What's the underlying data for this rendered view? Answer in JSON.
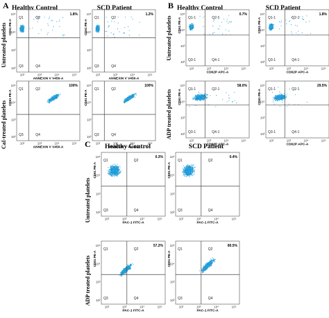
{
  "chart_data": [
    {
      "panel": "A",
      "type": "scatter",
      "column_titles": [
        "Healthy Control",
        "SCD Patient"
      ],
      "row_labels": [
        "Untreated platelets",
        "CaI-treated platelets"
      ],
      "xlabel": "ANNEXIN V V450-A",
      "ylabel": "CD61 PE-A",
      "x_ticks": [
        "10²",
        "10³",
        "10⁴",
        "10⁵"
      ],
      "y_ticks": [
        "10²",
        "10³",
        "10⁴",
        "10⁵"
      ],
      "quadrants": [
        "Q1",
        "Q2",
        "Q3",
        "Q4"
      ],
      "plots": [
        {
          "row": "Untreated platelets",
          "col": "Healthy Control",
          "q2_percent": "1.8%"
        },
        {
          "row": "Untreated platelets",
          "col": "SCD Patient",
          "q2_percent": "1.2%"
        },
        {
          "row": "CaI-treated platelets",
          "col": "Healthy Control",
          "q2_percent": "100%"
        },
        {
          "row": "CaI-treated platelets",
          "col": "SCD Patient",
          "q2_percent": "100%"
        }
      ]
    },
    {
      "panel": "B",
      "type": "scatter",
      "column_titles": [
        "Healthy Control",
        "SCD Patient"
      ],
      "row_labels": [
        "Untreated platelets",
        "ADP treated platelets"
      ],
      "xlabel": "CD62P APC-A",
      "ylabel": "CD61 PE-A",
      "x_ticks": [
        "10²",
        "10³",
        "10⁴",
        "10⁵"
      ],
      "y_ticks": [
        "10²",
        "10³",
        "10⁴",
        "10⁵"
      ],
      "quadrants": [
        "Q1-1",
        "Q2-1",
        "Q3-1",
        "Q4-1"
      ],
      "plots": [
        {
          "row": "Untreated platelets",
          "col": "Healthy Control",
          "q2_percent": "0.7%"
        },
        {
          "row": "Untreated platelets",
          "col": "SCD Patient",
          "q2_percent": "1.8%"
        },
        {
          "row": "ADP treated platelets",
          "col": "Healthy Control",
          "q2_percent": "58.0%"
        },
        {
          "row": "ADP treated platelets",
          "col": "SCD Patient",
          "q2_percent": "29.5%"
        }
      ]
    },
    {
      "panel": "C",
      "type": "scatter",
      "column_titles": [
        "Healthy Control",
        "SCD Patient"
      ],
      "row_labels": [
        "Untreated platelets",
        "ADP treated platelets"
      ],
      "xlabel": "PAC-1 FITC-A",
      "ylabel": "CD61 PE-A",
      "x_ticks": [
        "10²",
        "10³",
        "10⁴",
        "10⁵"
      ],
      "y_ticks": [
        "10²",
        "10³",
        "10⁴",
        "10⁵"
      ],
      "quadrants": [
        "Q1",
        "Q2",
        "Q3",
        "Q4"
      ],
      "plots": [
        {
          "row": "Untreated platelets",
          "col": "Healthy Control",
          "q2_percent": "0.3%"
        },
        {
          "row": "Untreated platelets",
          "col": "SCD Patient",
          "q2_percent": "0.4%"
        },
        {
          "row": "ADP treated platelets",
          "col": "Healthy Control",
          "q2_percent": "57.2%"
        },
        {
          "row": "ADP treated platelets",
          "col": "SCD Patient",
          "q2_percent": "80.5%"
        }
      ]
    }
  ],
  "colors": {
    "dots": "#2aa7df",
    "dots_dark": "#1a8ccc",
    "gate_line": "#444444",
    "frame": "#666666"
  }
}
